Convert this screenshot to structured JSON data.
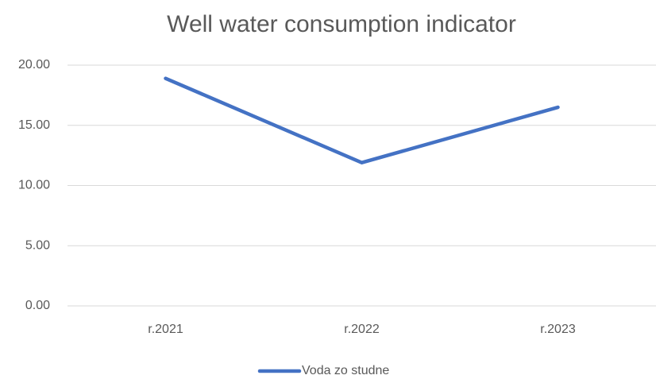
{
  "chart_data": {
    "type": "line",
    "title": "Well water consumption indicator",
    "categories": [
      "r.2021",
      "r.2022",
      "r.2023"
    ],
    "series": [
      {
        "name": "Voda zo studne",
        "color": "#4472c4",
        "values": [
          18.9,
          11.9,
          16.5
        ]
      }
    ],
    "ylim": [
      0,
      20
    ],
    "yticks": [
      {
        "value": 0,
        "label": "0.00"
      },
      {
        "value": 5,
        "label": "5.00"
      },
      {
        "value": 10,
        "label": "10.00"
      },
      {
        "value": 15,
        "label": "15.00"
      },
      {
        "value": 20,
        "label": "20.00"
      }
    ],
    "grid": true,
    "legend": "bottom"
  }
}
